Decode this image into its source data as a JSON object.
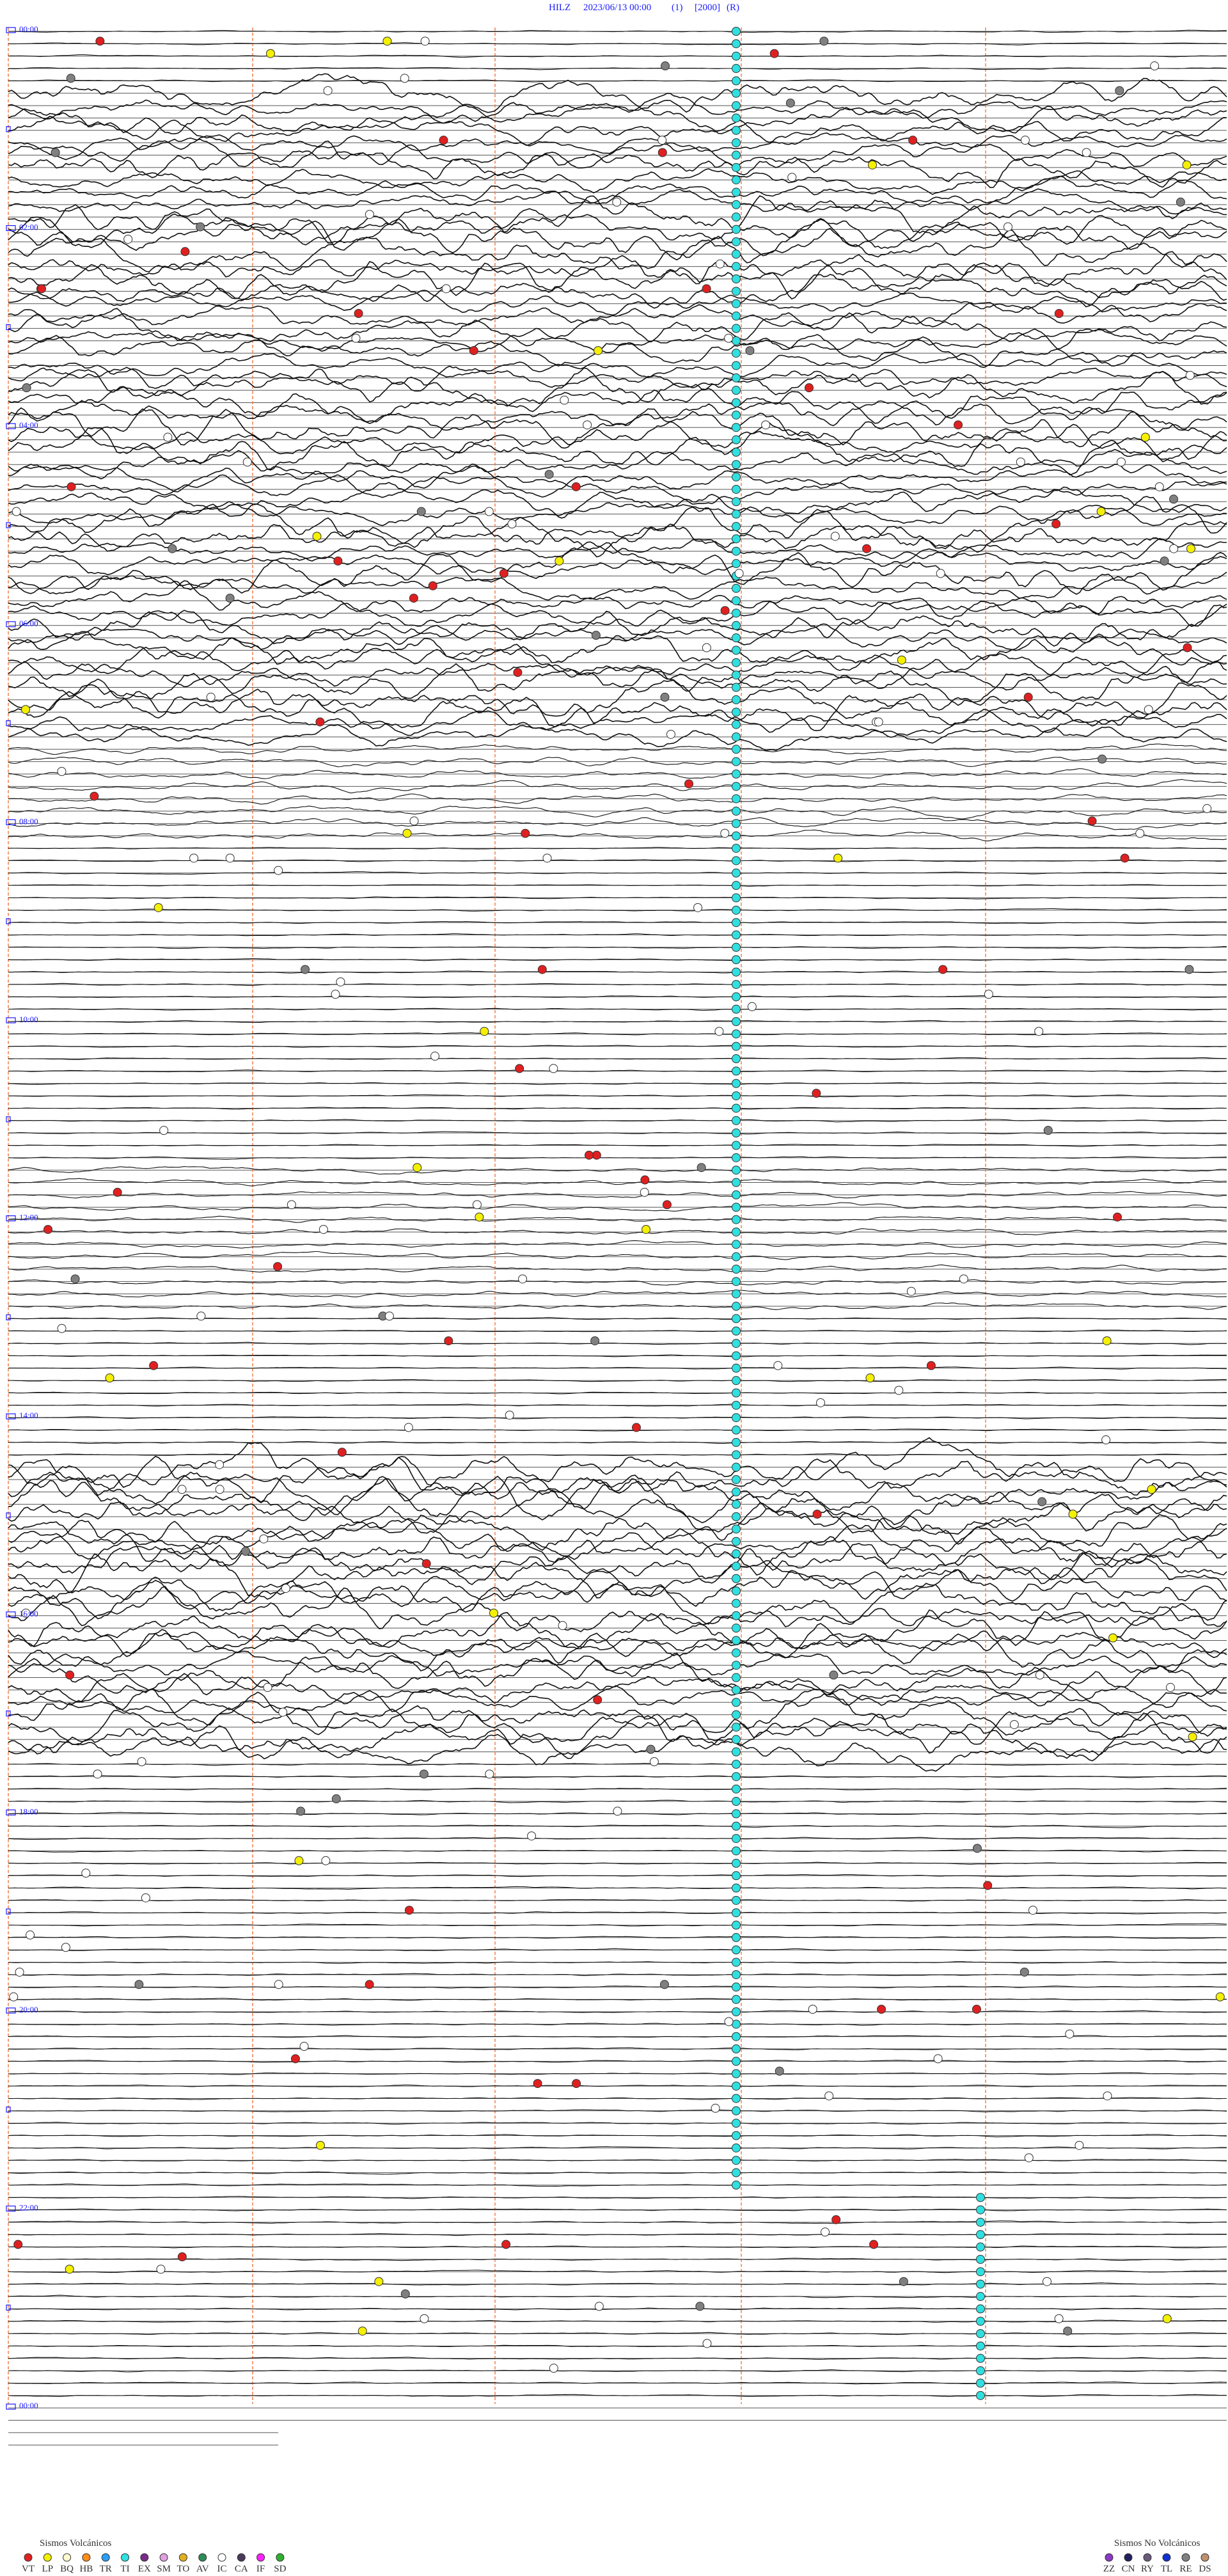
{
  "header": {
    "station": "HILZ",
    "datetime": "2023/06/13 00:00",
    "channel": "(1)",
    "scale": "[2000]",
    "mode": "(R)"
  },
  "time_labels": [
    "00:00",
    "02:00",
    "04:00",
    "06:00",
    "08:00",
    "10:00",
    "12:00",
    "14:00",
    "16:00",
    "18:00",
    "20:00",
    "22:00",
    "00:00"
  ],
  "legend": {
    "volcanic": {
      "title": "Sismos Volcánicos",
      "items": [
        {
          "code": "VT",
          "color": "#e02020"
        },
        {
          "code": "LP",
          "color": "#f4f000"
        },
        {
          "code": "BQ",
          "color": "#fffbd0"
        },
        {
          "code": "HB",
          "color": "#ff8c1a"
        },
        {
          "code": "TR",
          "color": "#2a9df4"
        },
        {
          "code": "TI",
          "color": "#30e0e0"
        },
        {
          "code": "EX",
          "color": "#7a2a8a"
        },
        {
          "code": "SM",
          "color": "#e0a0e0"
        },
        {
          "code": "TO",
          "color": "#e0b020"
        },
        {
          "code": "AV",
          "color": "#2e8b57"
        },
        {
          "code": "IC",
          "color": "#ffffff"
        },
        {
          "code": "CA",
          "color": "#4a3a5a"
        },
        {
          "code": "IF",
          "color": "#ff20ff"
        },
        {
          "code": "SD",
          "color": "#30b030"
        }
      ]
    },
    "non_volcanic": {
      "title": "Sismos No Volcánicos",
      "items": [
        {
          "code": "ZZ",
          "color": "#8a3ac0"
        },
        {
          "code": "CN",
          "color": "#202060"
        },
        {
          "code": "RY",
          "color": "#6a5a7a"
        },
        {
          "code": "TL",
          "color": "#1030d0"
        },
        {
          "code": "RE",
          "color": "#808080"
        },
        {
          "code": "DS",
          "color": "#c09070"
        }
      ]
    }
  }
}
